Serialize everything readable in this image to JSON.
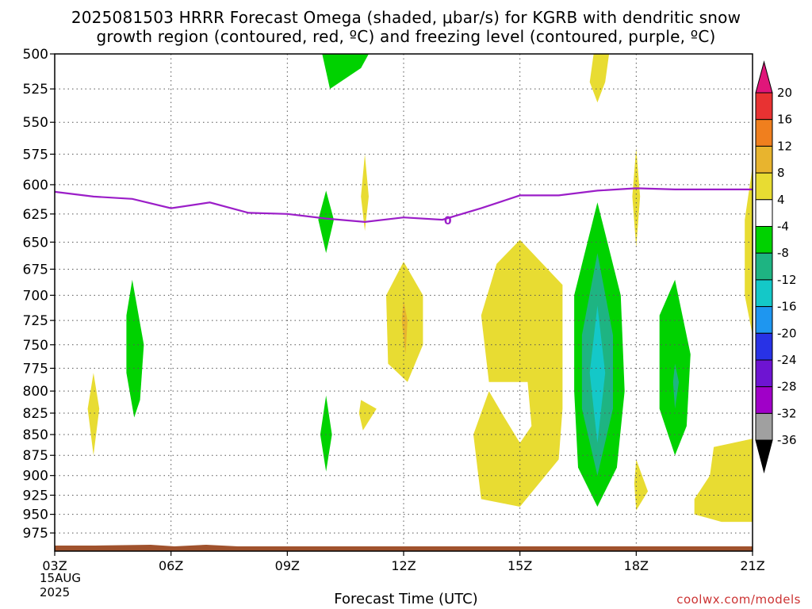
{
  "chart_data": {
    "type": "heatmap",
    "title": "2025081503 HRRR Forecast Omega (shaded, μbar/s) for KGRB with dendritic snow",
    "subtitle": "growth region (contoured, red, ºC) and freezing level (contoured, purple, ºC)",
    "xlabel": "Forecast Time (UTC)",
    "ylabel": "",
    "x_ticks": [
      "03Z",
      "06Z",
      "09Z",
      "12Z",
      "15Z",
      "18Z",
      "21Z"
    ],
    "x_range": [
      3,
      21
    ],
    "date_label": [
      "15AUG",
      "2025"
    ],
    "y_ticks": [
      500,
      525,
      550,
      575,
      600,
      625,
      650,
      675,
      700,
      725,
      750,
      775,
      800,
      825,
      850,
      875,
      900,
      925,
      950,
      975
    ],
    "y_range": [
      500,
      1000
    ],
    "y_scale": "log-pressure, inverted",
    "grid": true,
    "colorbar": {
      "levels": [
        "20",
        "16",
        "12",
        "8",
        "4",
        "-4",
        "-8",
        "-12",
        "-16",
        "-20",
        "-24",
        "-28",
        "-32",
        "-36"
      ],
      "colors": [
        "#e0167a",
        "#e83232",
        "#f07f1e",
        "#e8b42e",
        "#e8dc32",
        "#ffffff",
        "#00d200",
        "#1eb482",
        "#14c8c8",
        "#1e96f0",
        "#2832e6",
        "#6e14d2",
        "#a000c8",
        "#a0a0a0",
        "#000000"
      ]
    },
    "freezing_level": {
      "label": "0",
      "color": "#9b1ec8",
      "points": [
        [
          3.0,
          606
        ],
        [
          4.0,
          610
        ],
        [
          5.0,
          612
        ],
        [
          6.0,
          620
        ],
        [
          7.0,
          615
        ],
        [
          8.0,
          624
        ],
        [
          9.0,
          625
        ],
        [
          10.0,
          629
        ],
        [
          11.0,
          632
        ],
        [
          12.0,
          628
        ],
        [
          13.0,
          630
        ],
        [
          14.0,
          620
        ],
        [
          15.0,
          609
        ],
        [
          16.0,
          609
        ],
        [
          17.0,
          605
        ],
        [
          18.0,
          603
        ],
        [
          19.0,
          604
        ],
        [
          20.0,
          604
        ],
        [
          21.0,
          604
        ]
      ]
    },
    "omega_regions": [
      {
        "range": "4 to 8",
        "color": "#e8dc32",
        "points": [
          [
            4.0,
            780
          ],
          [
            4.15,
            820
          ],
          [
            4.0,
            875
          ],
          [
            3.85,
            820
          ]
        ]
      },
      {
        "range": "-8 to -4",
        "color": "#00d200",
        "points": [
          [
            5.0,
            685
          ],
          [
            5.3,
            750
          ],
          [
            5.2,
            810
          ],
          [
            5.05,
            830
          ],
          [
            4.85,
            780
          ],
          [
            4.85,
            720
          ]
        ]
      },
      {
        "range": "-8 to -4",
        "color": "#00d200",
        "points": [
          [
            9.9,
            500
          ],
          [
            11.1,
            500
          ],
          [
            10.9,
            510
          ],
          [
            10.1,
            525
          ]
        ]
      },
      {
        "range": "-8 to -4",
        "color": "#00d200",
        "points": [
          [
            10.0,
            605
          ],
          [
            10.2,
            630
          ],
          [
            10.0,
            660
          ],
          [
            9.8,
            630
          ]
        ]
      },
      {
        "range": "4 to 8",
        "color": "#e8dc32",
        "points": [
          [
            11.0,
            575
          ],
          [
            11.1,
            610
          ],
          [
            11.0,
            640
          ],
          [
            10.9,
            610
          ]
        ]
      },
      {
        "range": "-8 to -4",
        "color": "#00d200",
        "points": [
          [
            10.0,
            805
          ],
          [
            10.15,
            850
          ],
          [
            10.0,
            895
          ],
          [
            9.85,
            850
          ]
        ]
      },
      {
        "range": "4 to 8",
        "color": "#e8dc32",
        "points": [
          [
            10.9,
            810
          ],
          [
            11.3,
            820
          ],
          [
            10.95,
            845
          ],
          [
            10.85,
            825
          ]
        ]
      },
      {
        "range": "4 to 8",
        "color": "#e8dc32",
        "points": [
          [
            12.0,
            668
          ],
          [
            12.5,
            700
          ],
          [
            12.5,
            750
          ],
          [
            12.1,
            790
          ],
          [
            11.6,
            770
          ],
          [
            11.55,
            700
          ]
        ]
      },
      {
        "range": "8 to 12",
        "color": "#e8b42e",
        "points": [
          [
            12.0,
            705
          ],
          [
            12.1,
            725
          ],
          [
            12.05,
            760
          ],
          [
            11.95,
            725
          ]
        ]
      },
      {
        "range": "4 to 8",
        "color": "#e8dc32",
        "points": [
          [
            15.0,
            648
          ],
          [
            16.1,
            690
          ],
          [
            16.1,
            820
          ],
          [
            16.0,
            880
          ],
          [
            15.0,
            940
          ],
          [
            14.0,
            930
          ],
          [
            13.8,
            850
          ],
          [
            14.2,
            800
          ],
          [
            14.6,
            830
          ],
          [
            15.0,
            860
          ],
          [
            15.3,
            840
          ],
          [
            15.2,
            790
          ],
          [
            14.2,
            790
          ],
          [
            14.0,
            720
          ],
          [
            14.4,
            670
          ]
        ]
      },
      {
        "range": "4 to 8",
        "color": "#e8dc32",
        "points": [
          [
            16.9,
            500
          ],
          [
            17.3,
            500
          ],
          [
            17.2,
            520
          ],
          [
            17.0,
            535
          ],
          [
            16.8,
            520
          ]
        ]
      },
      {
        "range": "4 to 8",
        "color": "#e8dc32",
        "points": [
          [
            18.0,
            570
          ],
          [
            18.1,
            610
          ],
          [
            18.0,
            655
          ],
          [
            17.9,
            610
          ]
        ]
      },
      {
        "range": "-8 to -4",
        "color": "#00d200",
        "points": [
          [
            17.0,
            615
          ],
          [
            17.6,
            700
          ],
          [
            17.7,
            800
          ],
          [
            17.5,
            890
          ],
          [
            17.0,
            940
          ],
          [
            16.5,
            890
          ],
          [
            16.4,
            800
          ],
          [
            16.4,
            700
          ]
        ]
      },
      {
        "range": "-12 to -8",
        "color": "#1eb482",
        "points": [
          [
            17.0,
            660
          ],
          [
            17.4,
            740
          ],
          [
            17.4,
            820
          ],
          [
            17.0,
            900
          ],
          [
            16.6,
            820
          ],
          [
            16.6,
            740
          ]
        ]
      },
      {
        "range": "-16 to -12",
        "color": "#14c8c8",
        "points": [
          [
            17.0,
            710
          ],
          [
            17.2,
            780
          ],
          [
            17.0,
            860
          ],
          [
            16.8,
            780
          ]
        ]
      },
      {
        "range": "4 to 8",
        "color": "#e8dc32",
        "points": [
          [
            18.0,
            880
          ],
          [
            18.3,
            920
          ],
          [
            18.0,
            945
          ],
          [
            17.95,
            910
          ]
        ]
      },
      {
        "range": "-8 to -4",
        "color": "#00d200",
        "points": [
          [
            19.0,
            685
          ],
          [
            19.4,
            760
          ],
          [
            19.3,
            840
          ],
          [
            19.0,
            875
          ],
          [
            18.6,
            820
          ],
          [
            18.6,
            720
          ]
        ]
      },
      {
        "range": "-12 to -8",
        "color": "#1eb482",
        "points": [
          [
            19.0,
            770
          ],
          [
            19.1,
            790
          ],
          [
            19.0,
            820
          ],
          [
            18.95,
            790
          ]
        ]
      },
      {
        "range": "4 to 8",
        "color": "#e8dc32",
        "points": [
          [
            21.0,
            585
          ],
          [
            21.0,
            740
          ],
          [
            20.8,
            700
          ],
          [
            20.8,
            630
          ]
        ]
      },
      {
        "range": "4 to 8",
        "color": "#e8dc32",
        "points": [
          [
            20.0,
            865
          ],
          [
            21.0,
            855
          ],
          [
            21.0,
            960
          ],
          [
            20.2,
            960
          ],
          [
            19.5,
            950
          ],
          [
            19.5,
            930
          ],
          [
            19.9,
            900
          ]
        ]
      }
    ],
    "surface": {
      "color": "#a0522d"
    }
  },
  "credit": "coolwx.com/models"
}
